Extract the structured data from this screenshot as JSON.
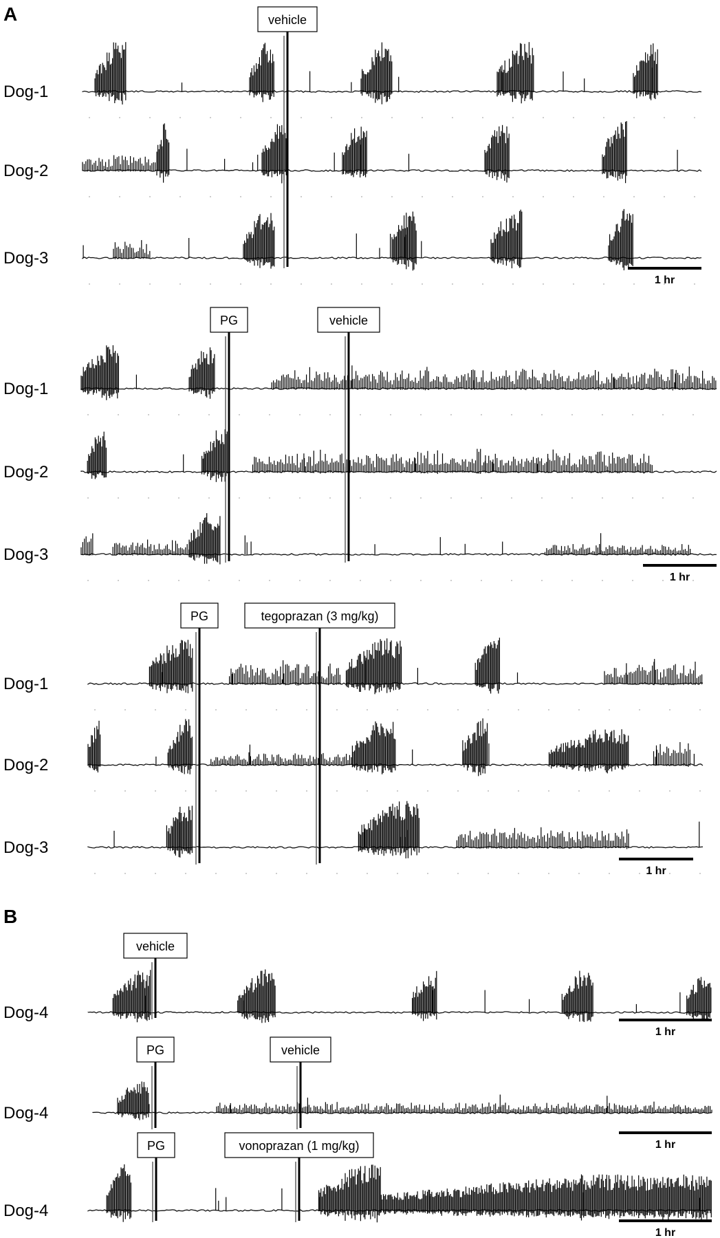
{
  "panels": [
    {
      "letter": "A",
      "blocks": [
        {
          "markers": [
            {
              "label": "vehicle"
            }
          ],
          "traces": [
            {
              "label": "Dog-1",
              "bursts": [
                [
                  0.02,
                  0.07,
                  0.9
                ],
                [
                  0.27,
                  0.31,
                  0.9
                ],
                [
                  0.45,
                  0.5,
                  0.9
                ],
                [
                  0.67,
                  0.73,
                  0.9
                ],
                [
                  0.89,
                  0.93,
                  0.9
                ]
              ]
            },
            {
              "label": "Dog-2",
              "bursts": [
                [
                  0.0,
                  0.12,
                  0.35
                ],
                [
                  0.12,
                  0.14,
                  0.9
                ],
                [
                  0.29,
                  0.33,
                  0.9
                ],
                [
                  0.42,
                  0.46,
                  0.9
                ],
                [
                  0.65,
                  0.69,
                  0.9
                ],
                [
                  0.84,
                  0.88,
                  0.9
                ]
              ]
            },
            {
              "label": "Dog-3",
              "bursts": [
                [
                  0.05,
                  0.11,
                  0.35
                ],
                [
                  0.26,
                  0.31,
                  0.9
                ],
                [
                  0.5,
                  0.54,
                  0.9
                ],
                [
                  0.66,
                  0.71,
                  0.9
                ],
                [
                  0.85,
                  0.89,
                  0.9
                ]
              ]
            }
          ],
          "scale_bar": "1 hr"
        },
        {
          "markers": [
            {
              "label": "PG"
            },
            {
              "label": "vehicle"
            }
          ],
          "traces": [
            {
              "label": "Dog-1",
              "bursts": [
                [
                  0.0,
                  0.06,
                  0.9
                ],
                [
                  0.17,
                  0.21,
                  0.9
                ],
                [
                  0.3,
                  1.0,
                  0.45
                ]
              ]
            },
            {
              "label": "Dog-2",
              "bursts": [
                [
                  0.01,
                  0.04,
                  0.9
                ],
                [
                  0.19,
                  0.23,
                  0.9
                ],
                [
                  0.27,
                  0.9,
                  0.5
                ]
              ]
            },
            {
              "label": "Dog-3",
              "bursts": [
                [
                  0.0,
                  0.02,
                  0.5
                ],
                [
                  0.05,
                  0.17,
                  0.35
                ],
                [
                  0.17,
                  0.22,
                  0.9
                ],
                [
                  0.73,
                  0.96,
                  0.25
                ]
              ]
            }
          ],
          "scale_bar": "1 hr"
        },
        {
          "markers": [
            {
              "label": "PG"
            },
            {
              "label": "tegoprazan (3 mg/kg)"
            }
          ],
          "traces": [
            {
              "label": "Dog-1",
              "bursts": [
                [
                  0.1,
                  0.17,
                  0.9
                ],
                [
                  0.23,
                  0.41,
                  0.45
                ],
                [
                  0.42,
                  0.51,
                  0.9
                ],
                [
                  0.63,
                  0.67,
                  0.9
                ],
                [
                  0.84,
                  1.0,
                  0.45
                ]
              ]
            },
            {
              "label": "Dog-2",
              "bursts": [
                [
                  0.0,
                  0.02,
                  0.9
                ],
                [
                  0.13,
                  0.17,
                  0.9
                ],
                [
                  0.2,
                  0.43,
                  0.25
                ],
                [
                  0.43,
                  0.5,
                  0.9
                ],
                [
                  0.61,
                  0.65,
                  0.9
                ],
                [
                  0.75,
                  0.88,
                  0.7
                ],
                [
                  0.92,
                  0.98,
                  0.5
                ]
              ]
            },
            {
              "label": "Dog-3",
              "bursts": [
                [
                  0.13,
                  0.17,
                  0.9
                ],
                [
                  0.44,
                  0.54,
                  0.9
                ],
                [
                  0.6,
                  0.88,
                  0.45
                ]
              ]
            }
          ],
          "scale_bar": "1 hr"
        }
      ]
    },
    {
      "letter": "B",
      "blocks": [
        {
          "markers": [
            {
              "label": "vehicle"
            }
          ],
          "traces": [
            {
              "label": "Dog-4",
              "bursts": [
                [
                  0.04,
                  0.1,
                  0.9
                ],
                [
                  0.24,
                  0.3,
                  0.9
                ],
                [
                  0.52,
                  0.56,
                  0.9
                ],
                [
                  0.76,
                  0.81,
                  0.9
                ],
                [
                  0.96,
                  1.0,
                  0.9
                ]
              ]
            }
          ],
          "scale_bar": "1 hr"
        },
        {
          "markers": [
            {
              "label": "PG"
            },
            {
              "label": "vehicle"
            }
          ],
          "traces": [
            {
              "label": "Dog-4",
              "bursts": [
                [
                  0.04,
                  0.09,
                  0.9
                ],
                [
                  0.2,
                  1.0,
                  0.3
                ]
              ]
            }
          ],
          "scale_bar": "1 hr"
        },
        {
          "markers": [
            {
              "label": "PG"
            },
            {
              "label": "vonoprazan (1 mg/kg)"
            }
          ],
          "traces": [
            {
              "label": "Dog-4",
              "bursts": [
                [
                  0.03,
                  0.07,
                  0.9
                ],
                [
                  0.37,
                  0.47,
                  0.9
                ],
                [
                  0.47,
                  1.0,
                  0.7
                ]
              ]
            }
          ],
          "scale_bar": "1 hr"
        }
      ]
    }
  ],
  "chart_data": {
    "type": "line",
    "title": "",
    "xlabel": "",
    "ylabel": "",
    "grid": false,
    "x_scale_bar": "1 hr",
    "series": [
      {
        "name": "Dog-1",
        "values": []
      },
      {
        "name": "Dog-2",
        "values": []
      },
      {
        "name": "Dog-3",
        "values": []
      },
      {
        "name": "Dog-4",
        "values": []
      }
    ]
  }
}
